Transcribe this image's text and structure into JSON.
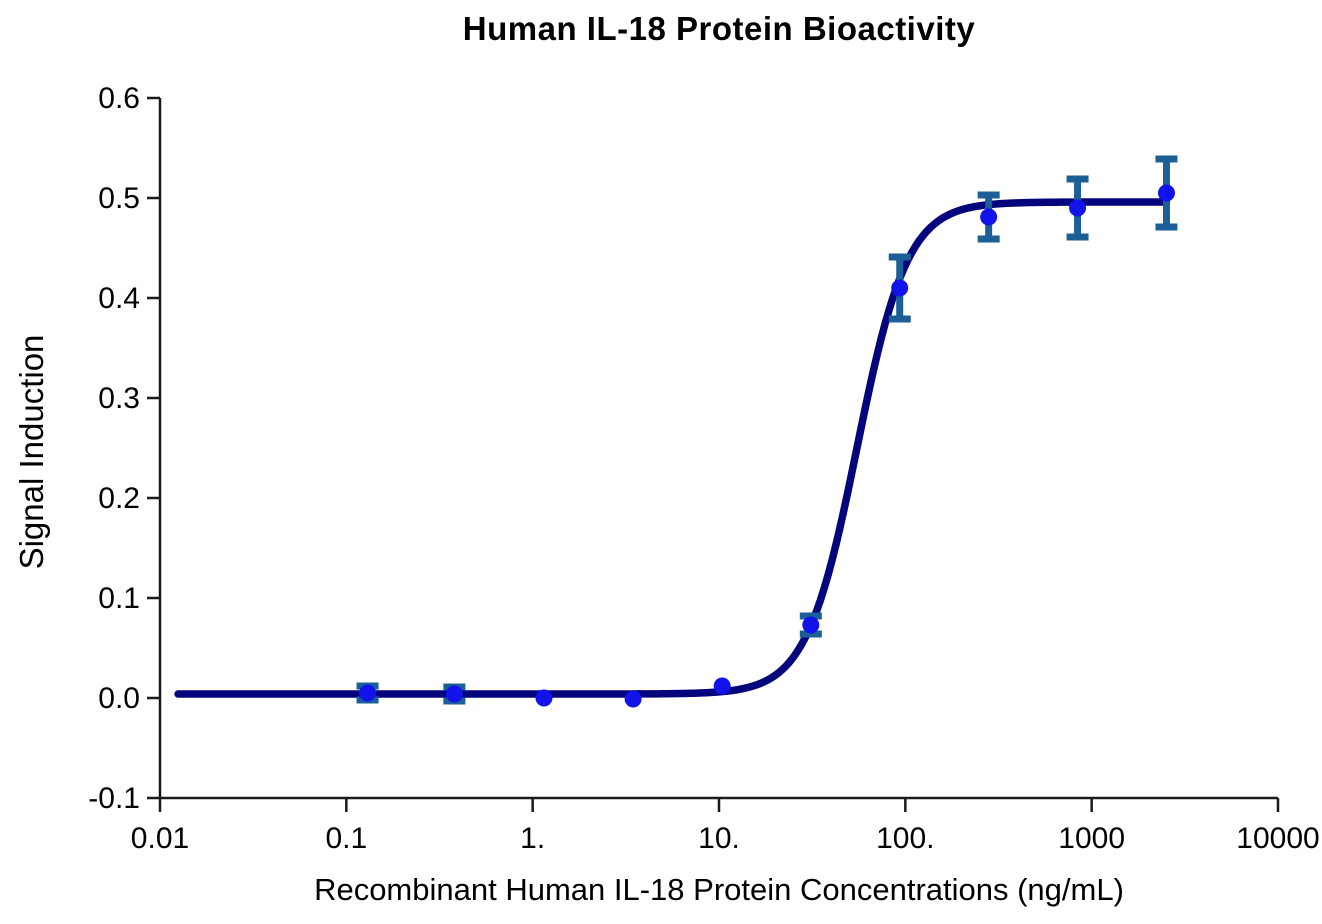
{
  "chart_data": {
    "type": "scatter",
    "subtype": "dose-response-curve-with-error-bars",
    "title": "Human IL-18 Protein Bioactivity",
    "xlabel": "Recombinant Human IL-18 Protein Concentrations (ng/mL)",
    "ylabel": "Signal Induction",
    "x_scale": "log10",
    "xlim": [
      0.01,
      10000
    ],
    "ylim": [
      -0.1,
      0.6
    ],
    "grid": false,
    "legend": false,
    "x_ticks": [
      {
        "value": 0.01,
        "label": "0.01"
      },
      {
        "value": 0.1,
        "label": "0.1"
      },
      {
        "value": 1,
        "label": "1."
      },
      {
        "value": 10,
        "label": "10."
      },
      {
        "value": 100,
        "label": "100."
      },
      {
        "value": 1000,
        "label": "1000"
      },
      {
        "value": 10000,
        "label": "10000"
      }
    ],
    "y_ticks": [
      {
        "value": 0.6,
        "label": "0.6"
      },
      {
        "value": 0.5,
        "label": "0.5"
      },
      {
        "value": 0.4,
        "label": "0.4"
      },
      {
        "value": 0.3,
        "label": "0.3"
      },
      {
        "value": 0.2,
        "label": "0.2"
      },
      {
        "value": 0.1,
        "label": "0.1"
      },
      {
        "value": 0.0,
        "label": "0.0"
      },
      {
        "value": -0.1,
        "label": "-0.1"
      }
    ],
    "points": [
      {
        "x": 0.13,
        "y": 0.005,
        "err": 0.007
      },
      {
        "x": 0.38,
        "y": 0.004,
        "err": 0.007
      },
      {
        "x": 1.15,
        "y": 0.0,
        "err": 0
      },
      {
        "x": 3.46,
        "y": -0.001,
        "err": 0
      },
      {
        "x": 10.4,
        "y": 0.012,
        "err": 0
      },
      {
        "x": 31.1,
        "y": 0.073,
        "err": 0.009
      },
      {
        "x": 93.3,
        "y": 0.41,
        "err": 0.031
      },
      {
        "x": 280,
        "y": 0.481,
        "err": 0.022
      },
      {
        "x": 840,
        "y": 0.49,
        "err": 0.029
      },
      {
        "x": 2520,
        "y": 0.505,
        "err": 0.034
      }
    ],
    "fit_curve": {
      "model": "4PL",
      "bottom": 0.004,
      "top": 0.496,
      "ec50": 55,
      "hill": 3.2,
      "x_start": 0.0125,
      "x_end": 2520
    },
    "colors": {
      "curve": "#04047c",
      "marker": "#1212ea",
      "error_bar": "#1c5f97",
      "axis": "#1a1a1a",
      "text": "#000000"
    }
  }
}
